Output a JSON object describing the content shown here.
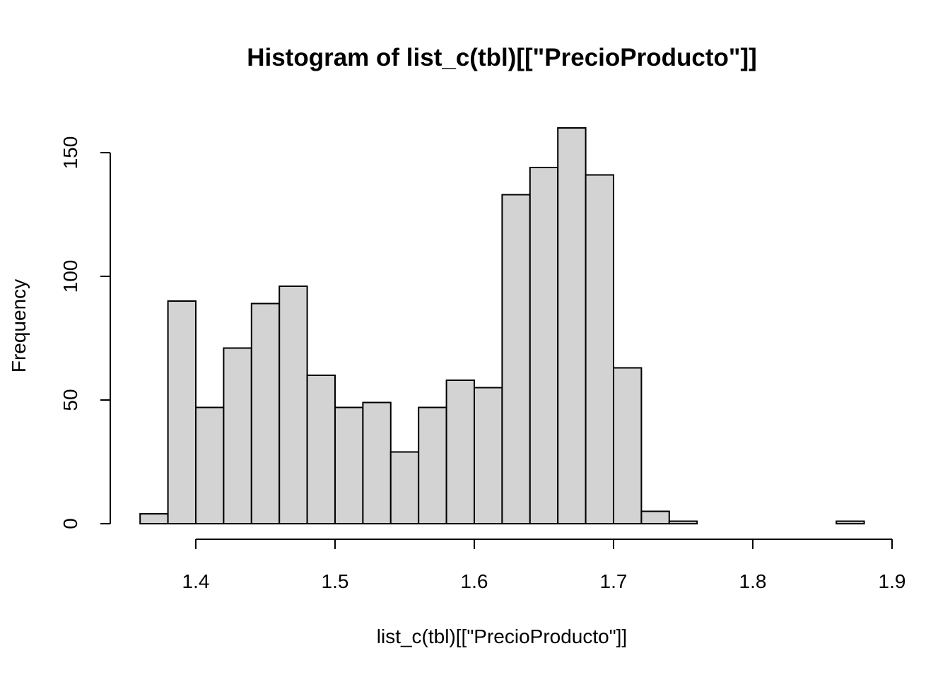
{
  "colors": {
    "bar_fill": "#d3d3d3",
    "bar_stroke": "#000000",
    "background": "#ffffff"
  },
  "chart_data": {
    "type": "bar",
    "title": "Histogram of list_c(tbl)[[\"PrecioProducto\"]]",
    "xlabel": "list_c(tbl)[[\"PrecioProducto\"]]",
    "ylabel": "Frequency",
    "bin_edges": [
      1.36,
      1.38,
      1.4,
      1.42,
      1.44,
      1.46,
      1.48,
      1.5,
      1.52,
      1.54,
      1.56,
      1.58,
      1.6,
      1.62,
      1.64,
      1.66,
      1.68,
      1.7,
      1.72,
      1.74,
      1.76,
      1.78,
      1.8,
      1.82,
      1.84,
      1.86,
      1.88
    ],
    "values": [
      4,
      90,
      47,
      71,
      89,
      96,
      60,
      47,
      49,
      29,
      47,
      58,
      55,
      133,
      144,
      160,
      141,
      63,
      5,
      1,
      0,
      0,
      0,
      0,
      0,
      1
    ],
    "xlim": [
      1.4,
      1.9
    ],
    "ylim": [
      0,
      150
    ],
    "x_ticks": [
      "1.4",
      "1.5",
      "1.6",
      "1.7",
      "1.8",
      "1.9"
    ],
    "y_ticks": [
      "0",
      "50",
      "100",
      "150"
    ],
    "grid": false,
    "legend": "none"
  }
}
